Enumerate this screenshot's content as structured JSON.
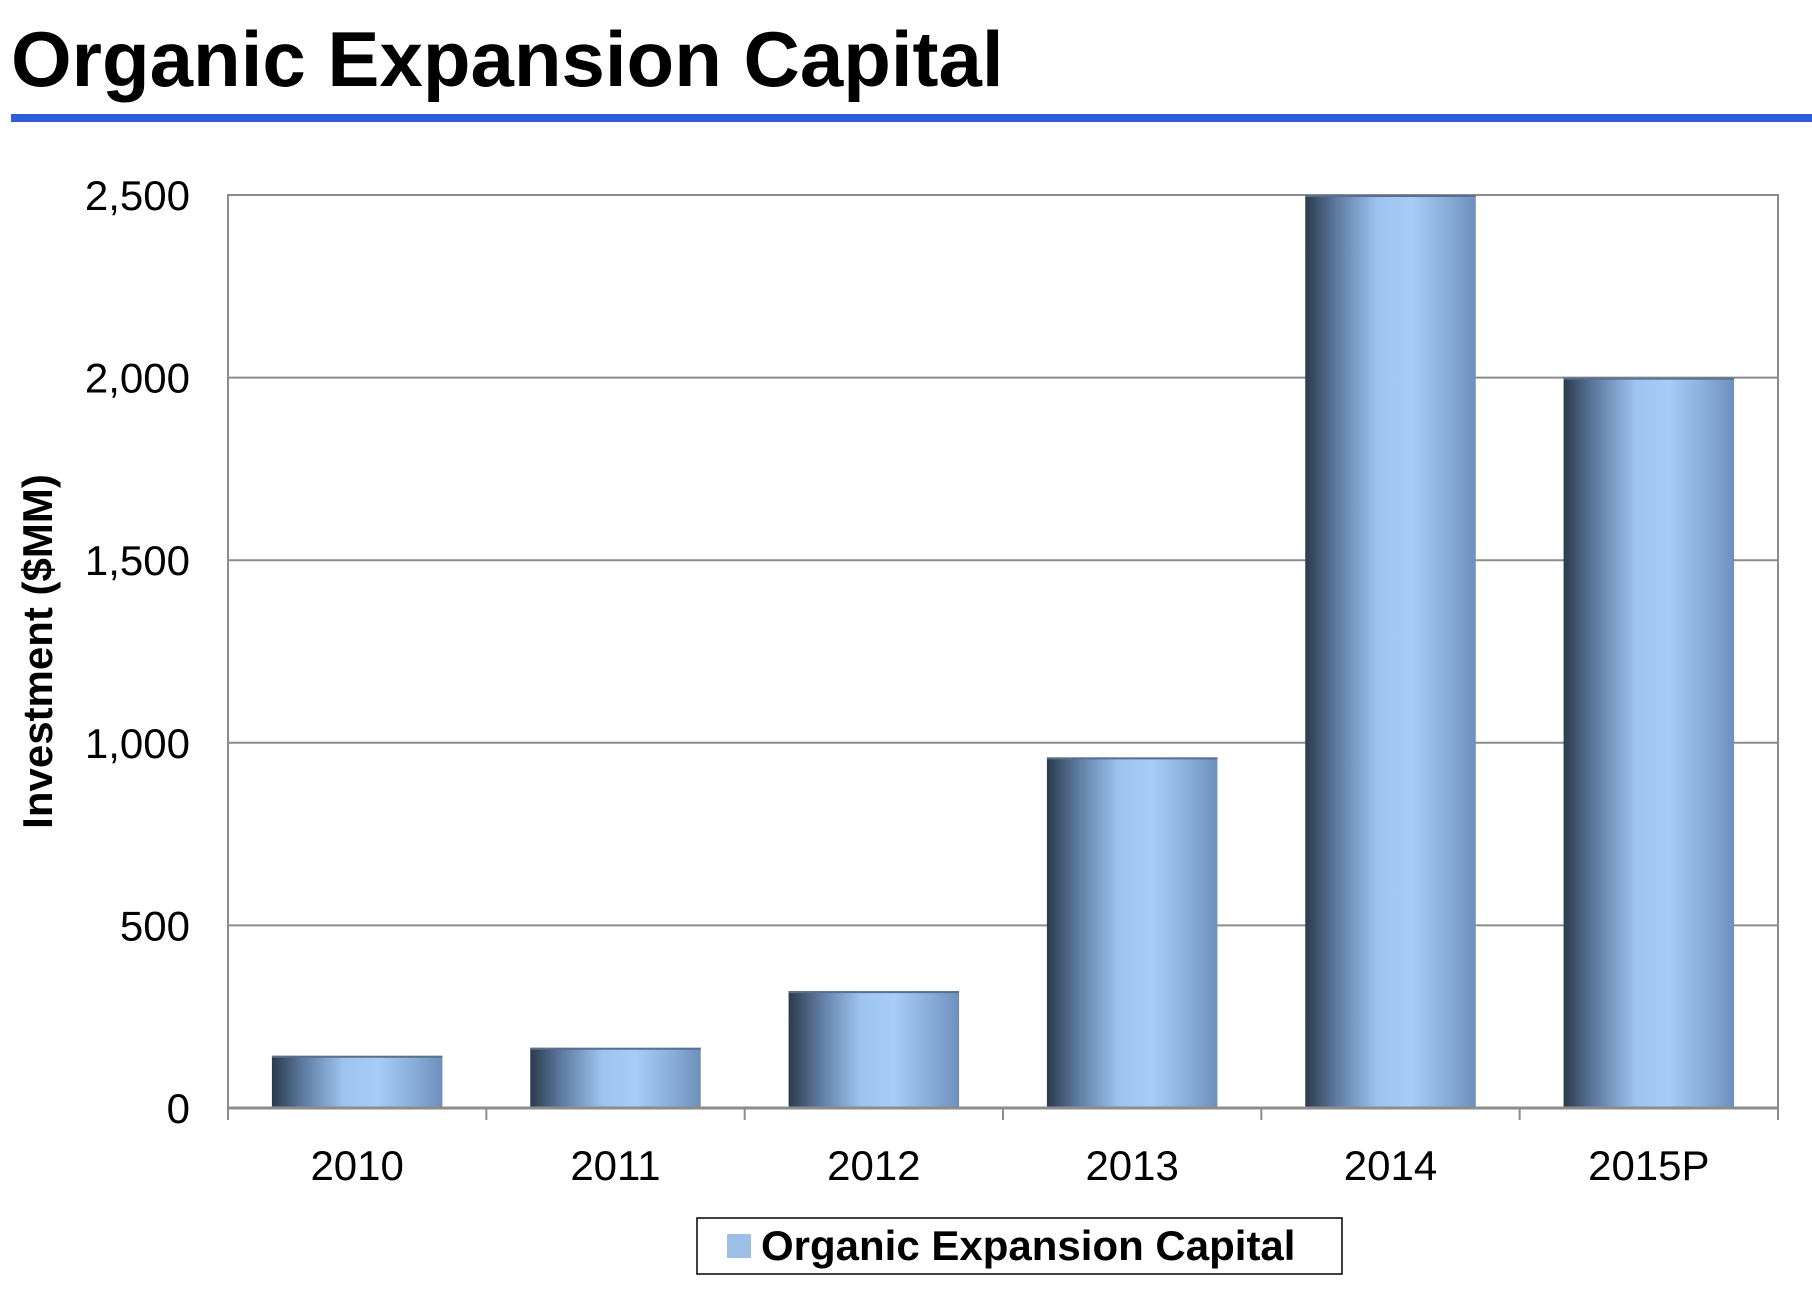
{
  "page": {
    "title": "Organic Expansion Capital",
    "accent_color": "#2e5fd8"
  },
  "chart_data": {
    "type": "bar",
    "categories": [
      "2010",
      "2011",
      "2012",
      "2013",
      "2014",
      "2015P"
    ],
    "series": [
      {
        "name": "Organic Expansion Capital",
        "values": [
          143,
          165,
          320,
          960,
          2500,
          2000
        ],
        "color": "#9dbfe6"
      }
    ],
    "ylabel": "Investment ($MM)",
    "xlabel": "",
    "ylim": [
      0,
      2500
    ],
    "yticks": [
      0,
      500,
      1000,
      1500,
      2000,
      2500
    ],
    "ytick_labels": [
      "0",
      "500",
      "1,000",
      "1,500",
      "2,000",
      "2,500"
    ],
    "grid": true,
    "legend_position": "bottom-center"
  }
}
